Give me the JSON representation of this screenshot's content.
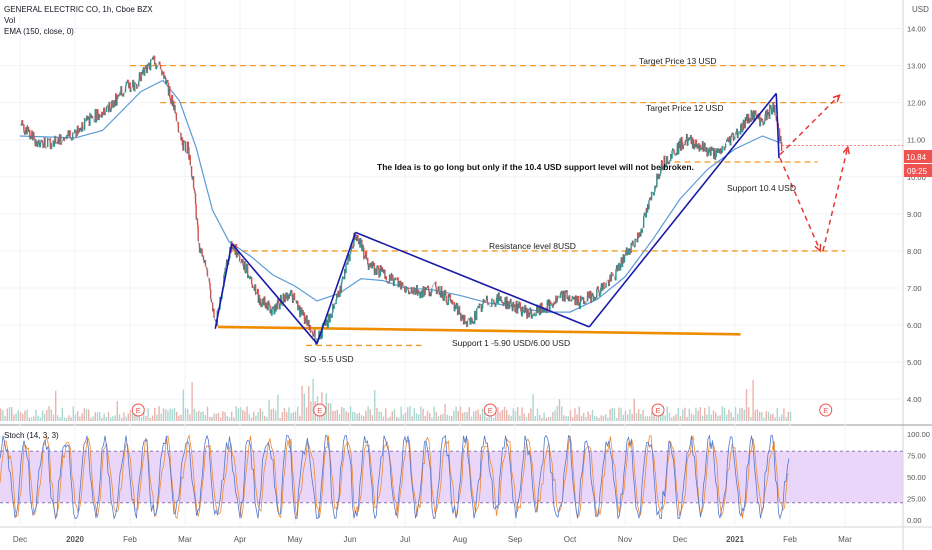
{
  "header": {
    "symbol": "GENERAL ELECTRIC CO, 1h, Cboe BZX",
    "vol": "Vol",
    "ema": "EMA (150, close, 0)",
    "stoch": "Stoch (14, 3, 3)"
  },
  "currency": "USD",
  "price_badge": {
    "value": "10.84",
    "countdown": "09:25"
  },
  "colors": {
    "accent_orange": "#f59a23",
    "support_line": "#ef8c00",
    "trend_blue": "#1a1aa8",
    "ema_line": "#5b9bd5",
    "stoch_band": "#e1c8f7",
    "arrow_red": "#e53935",
    "badge_red": "#ef5350"
  },
  "annotations": {
    "target13": "Target Price 13 USD",
    "target12": "Target Price 12 USD",
    "idea": "The Idea is to go long but only if the 10.4 USD support level will not be broken.",
    "support104": "Support 10.4 USD",
    "resistance8": "Resistance level 8USD",
    "support1": "Support 1 -5.90 USD/6.00 USD",
    "so55": "SO -5.5 USD"
  },
  "earnings_marker": "E",
  "chart_data": {
    "type": "line",
    "price_axis": {
      "range": [
        3.6,
        14.5
      ],
      "ticks": [
        4.0,
        5.0,
        6.0,
        7.0,
        8.0,
        9.0,
        10.0,
        11.0,
        12.0,
        13.0,
        14.0
      ],
      "tick_labels": [
        "4.00",
        "5.00",
        "6.00",
        "7.00",
        "8.00",
        "9.00",
        "10.00",
        "11.00",
        "12.00",
        "13.00",
        "14.00"
      ]
    },
    "stoch_axis": {
      "range": [
        -7,
        107
      ],
      "ticks": [
        0,
        25,
        50,
        75,
        100
      ],
      "tick_labels": [
        "0.00",
        "25.00",
        "50.00",
        "75.00",
        "100.00"
      ],
      "band": [
        20,
        80
      ]
    },
    "time_axis": {
      "labels": [
        "Dec",
        "2020",
        "Feb",
        "Mar",
        "Apr",
        "May",
        "Jun",
        "Jul",
        "Aug",
        "Sep",
        "Oct",
        "Nov",
        "Dec",
        "2021",
        "Feb",
        "Mar"
      ],
      "positions": [
        0,
        1,
        2,
        3,
        4,
        5,
        6,
        7,
        8,
        9,
        10,
        11,
        12,
        13,
        14,
        15
      ]
    },
    "price_keypoints": [
      [
        0.0,
        11.4
      ],
      [
        0.35,
        10.9
      ],
      [
        0.7,
        10.95
      ],
      [
        1.0,
        11.2
      ],
      [
        1.3,
        11.6
      ],
      [
        1.6,
        11.8
      ],
      [
        1.9,
        12.4
      ],
      [
        2.1,
        12.5
      ],
      [
        2.3,
        12.9
      ],
      [
        2.45,
        13.1
      ],
      [
        2.6,
        12.8
      ],
      [
        2.8,
        11.9
      ],
      [
        2.95,
        10.9
      ],
      [
        3.05,
        10.8
      ],
      [
        3.15,
        9.9
      ],
      [
        3.25,
        8.2
      ],
      [
        3.45,
        7.1
      ],
      [
        3.55,
        5.9
      ],
      [
        3.75,
        7.6
      ],
      [
        3.85,
        8.2
      ],
      [
        4.15,
        7.4
      ],
      [
        4.35,
        6.7
      ],
      [
        4.6,
        6.4
      ],
      [
        4.9,
        6.9
      ],
      [
        5.2,
        6.1
      ],
      [
        5.4,
        5.6
      ],
      [
        5.6,
        6.1
      ],
      [
        5.9,
        7.3
      ],
      [
        6.1,
        8.5
      ],
      [
        6.35,
        7.6
      ],
      [
        6.7,
        7.3
      ],
      [
        7.0,
        7.0
      ],
      [
        7.3,
        6.9
      ],
      [
        7.6,
        7.0
      ],
      [
        7.9,
        6.5
      ],
      [
        8.15,
        6.0
      ],
      [
        8.45,
        6.6
      ],
      [
        8.7,
        6.7
      ],
      [
        9.0,
        6.5
      ],
      [
        9.3,
        6.3
      ],
      [
        9.6,
        6.5
      ],
      [
        9.9,
        6.8
      ],
      [
        10.2,
        6.6
      ],
      [
        10.5,
        6.9
      ],
      [
        10.8,
        7.3
      ],
      [
        11.05,
        8.0
      ],
      [
        11.25,
        8.4
      ],
      [
        11.45,
        9.3
      ],
      [
        11.65,
        10.3
      ],
      [
        11.9,
        10.7
      ],
      [
        12.1,
        11.0
      ],
      [
        12.3,
        10.9
      ],
      [
        12.5,
        10.7
      ],
      [
        12.7,
        10.6
      ],
      [
        12.9,
        11.0
      ],
      [
        13.1,
        11.3
      ],
      [
        13.3,
        11.7
      ],
      [
        13.5,
        11.5
      ],
      [
        13.7,
        11.9
      ],
      [
        13.85,
        10.84
      ]
    ],
    "ema_keypoints": [
      [
        0.0,
        11.1
      ],
      [
        1.0,
        11.05
      ],
      [
        1.5,
        11.25
      ],
      [
        2.2,
        12.3
      ],
      [
        2.6,
        12.6
      ],
      [
        2.9,
        12.05
      ],
      [
        3.2,
        10.8
      ],
      [
        3.5,
        9.1
      ],
      [
        3.8,
        8.25
      ],
      [
        4.2,
        7.85
      ],
      [
        4.6,
        7.35
      ],
      [
        5.0,
        7.05
      ],
      [
        5.4,
        6.65
      ],
      [
        5.8,
        6.85
      ],
      [
        6.2,
        7.25
      ],
      [
        6.6,
        7.2
      ],
      [
        7.0,
        7.0
      ],
      [
        7.5,
        6.95
      ],
      [
        8.0,
        6.8
      ],
      [
        8.5,
        6.6
      ],
      [
        9.0,
        6.5
      ],
      [
        9.5,
        6.35
      ],
      [
        10.0,
        6.35
      ],
      [
        10.5,
        6.7
      ],
      [
        11.0,
        7.3
      ],
      [
        11.5,
        8.3
      ],
      [
        12.0,
        9.4
      ],
      [
        12.5,
        10.2
      ],
      [
        13.0,
        10.75
      ],
      [
        13.5,
        11.1
      ],
      [
        13.85,
        10.9
      ]
    ],
    "levels": [
      {
        "name": "target-13",
        "y": 13.0,
        "x": [
          2.0,
          15.0
        ]
      },
      {
        "name": "target-12",
        "y": 12.0,
        "x": [
          2.55,
          14.95
        ]
      },
      {
        "name": "support-10-4",
        "y": 10.4,
        "x": [
          11.9,
          14.5
        ]
      },
      {
        "name": "resistance-8",
        "y": 8.0,
        "x": [
          3.85,
          15.0
        ]
      },
      {
        "name": "so-5-5",
        "y": 5.45,
        "x": [
          5.2,
          7.3
        ]
      }
    ],
    "support_line": {
      "from": [
        3.6,
        5.95
      ],
      "to": [
        13.1,
        5.75
      ]
    },
    "trend_lines": [
      {
        "from": [
          3.55,
          5.9
        ],
        "to": [
          3.85,
          8.2
        ]
      },
      {
        "from": [
          3.85,
          8.2
        ],
        "to": [
          5.4,
          5.5
        ]
      },
      {
        "from": [
          5.4,
          5.5
        ],
        "to": [
          6.1,
          8.5
        ]
      },
      {
        "from": [
          6.1,
          8.5
        ],
        "to": [
          10.35,
          5.95
        ]
      },
      {
        "from": [
          10.35,
          5.95
        ],
        "to": [
          13.75,
          12.25
        ]
      },
      {
        "from": [
          13.75,
          12.25
        ],
        "to": [
          13.8,
          10.5
        ]
      }
    ],
    "projection_arrows": [
      {
        "from": [
          13.82,
          10.5
        ],
        "to": [
          14.55,
          8.0
        ]
      },
      {
        "from": [
          14.6,
          8.0
        ],
        "to": [
          15.05,
          10.8
        ]
      },
      {
        "from": [
          13.82,
          10.6
        ],
        "to": [
          14.9,
          12.2
        ]
      }
    ],
    "earnings_positions": [
      2.15,
      5.45,
      8.55,
      11.6,
      14.65
    ]
  }
}
